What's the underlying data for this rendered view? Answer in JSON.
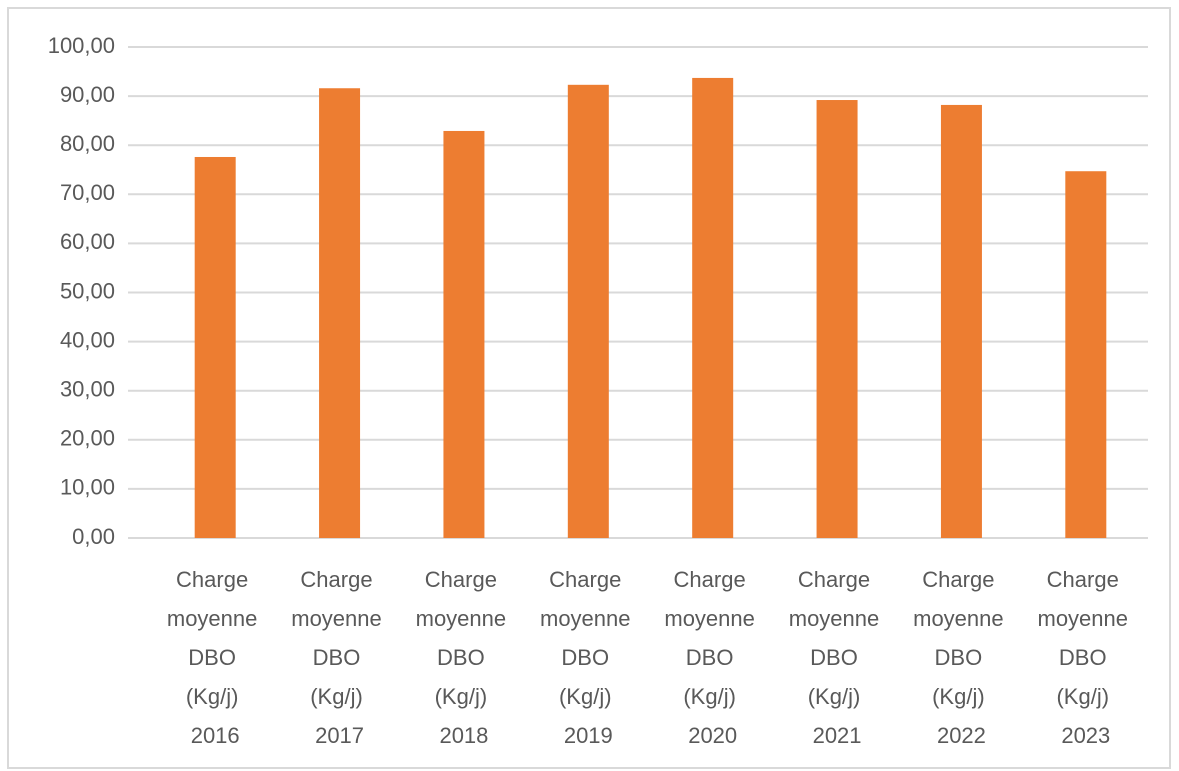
{
  "chart_data": {
    "type": "bar",
    "categories": [
      "Charge moyenne DBO (Kg/j) 2016",
      "Charge moyenne DBO (Kg/j) 2017",
      "Charge moyenne DBO (Kg/j) 2018",
      "Charge moyenne DBO (Kg/j) 2019",
      "Charge moyenne DBO (Kg/j) 2020",
      "Charge moyenne DBO (Kg/j) 2021",
      "Charge moyenne DBO (Kg/j) 2022",
      "Charge moyenne DBO (Kg/j) 2023"
    ],
    "values": [
      77.6,
      91.6,
      82.9,
      92.3,
      93.7,
      89.2,
      88.2,
      74.7
    ],
    "color": "#ed7d31",
    "ylim": [
      0,
      100
    ],
    "yticks": [
      {
        "value": 0,
        "label": "0,00"
      },
      {
        "value": 10,
        "label": "10,00"
      },
      {
        "value": 20,
        "label": "20,00"
      },
      {
        "value": 30,
        "label": "30,00"
      },
      {
        "value": 40,
        "label": "40,00"
      },
      {
        "value": 50,
        "label": "50,00"
      },
      {
        "value": 60,
        "label": "60,00"
      },
      {
        "value": 70,
        "label": "70,00"
      },
      {
        "value": 80,
        "label": "80,00"
      },
      {
        "value": 90,
        "label": "90,00"
      },
      {
        "value": 100,
        "label": "100,00"
      }
    ],
    "grid": true
  }
}
